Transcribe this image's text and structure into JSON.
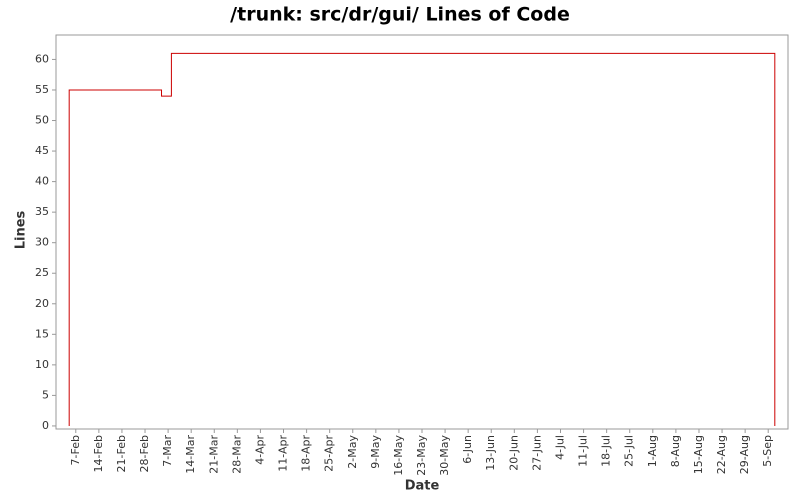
{
  "chart_data": {
    "type": "line",
    "step": "post",
    "title": "/trunk: src/dr/gui/ Lines of Code",
    "x_label": "Date",
    "y_label": "Lines",
    "x": [
      "5-Feb",
      "5-Feb",
      "5-Mar",
      "8-Mar",
      "7-Sep",
      "7-Sep"
    ],
    "values": [
      0,
      55,
      54,
      61,
      61,
      0
    ],
    "color": "#cc0000",
    "xlim": [
      "1-Feb",
      "11-Sep"
    ],
    "xticks": [
      "7-Feb",
      "14-Feb",
      "21-Feb",
      "28-Feb",
      "7-Mar",
      "14-Mar",
      "21-Mar",
      "28-Mar",
      "4-Apr",
      "11-Apr",
      "18-Apr",
      "25-Apr",
      "2-May",
      "9-May",
      "16-May",
      "23-May",
      "30-May",
      "6-Jun",
      "13-Jun",
      "20-Jun",
      "27-Jun",
      "4-Jul",
      "11-Jul",
      "18-Jul",
      "25-Jul",
      "1-Aug",
      "8-Aug",
      "15-Aug",
      "22-Aug",
      "29-Aug",
      "5-Sep"
    ],
    "ylim": [
      -0.5,
      64
    ],
    "yticks": [
      0,
      5,
      10,
      15,
      20,
      25,
      30,
      35,
      40,
      45,
      50,
      55,
      60
    ]
  }
}
